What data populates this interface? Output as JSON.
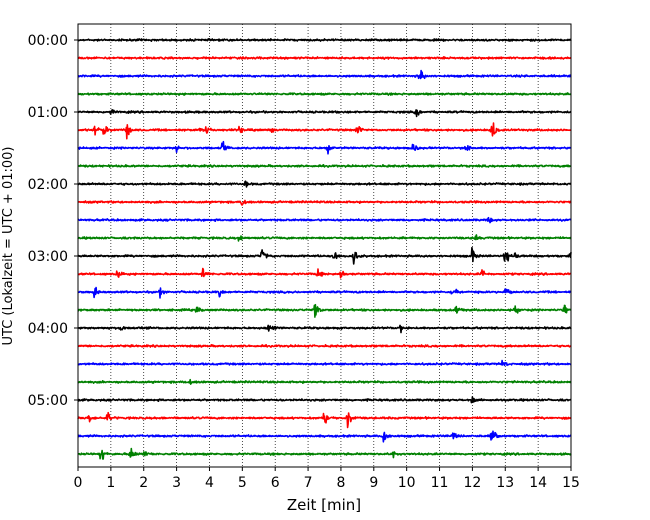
{
  "chart_data": {
    "type": "line",
    "title": "",
    "xlabel": "Zeit  [min]",
    "ylabel": "UTC (Lokalzeit = UTC + 01:00)",
    "xlim": [
      0,
      15
    ],
    "x_ticks": [
      "0",
      "1",
      "2",
      "3",
      "4",
      "5",
      "6",
      "7",
      "8",
      "9",
      "10",
      "11",
      "12",
      "13",
      "14",
      "15"
    ],
    "y_ticks": [
      "00:00",
      "01:00",
      "02:00",
      "03:00",
      "04:00",
      "05:00"
    ],
    "grid": "vertical dotted at each minute",
    "legend": "none",
    "row_colors": [
      "#000000",
      "#ff0000",
      "#0000ff",
      "#008000"
    ],
    "rows": [
      {
        "start": "00:00",
        "color": "#000000",
        "events": []
      },
      {
        "start": "00:15",
        "color": "#ff0000",
        "events": []
      },
      {
        "start": "00:30",
        "color": "#0000ff",
        "events": [
          {
            "t": 10.4,
            "amp": 10
          }
        ]
      },
      {
        "start": "00:45",
        "color": "#008000",
        "events": []
      },
      {
        "start": "01:00",
        "color": "#000000",
        "events": [
          {
            "t": 1.0,
            "amp": 4
          },
          {
            "t": 10.3,
            "amp": 5
          }
        ]
      },
      {
        "start": "01:15",
        "color": "#ff0000",
        "events": [
          {
            "t": 0.5,
            "amp": 8
          },
          {
            "t": 0.8,
            "amp": 7
          },
          {
            "t": 1.5,
            "amp": 9
          },
          {
            "t": 3.7,
            "amp": 7
          },
          {
            "t": 3.9,
            "amp": 8
          },
          {
            "t": 4.9,
            "amp": 7
          },
          {
            "t": 5.9,
            "amp": 7
          },
          {
            "t": 8.5,
            "amp": 7
          },
          {
            "t": 12.6,
            "amp": 12
          }
        ]
      },
      {
        "start": "01:30",
        "color": "#0000ff",
        "events": [
          {
            "t": 3.0,
            "amp": 6
          },
          {
            "t": 4.4,
            "amp": 7
          },
          {
            "t": 7.6,
            "amp": 7
          },
          {
            "t": 10.2,
            "amp": 9
          },
          {
            "t": 11.8,
            "amp": 7
          }
        ]
      },
      {
        "start": "01:45",
        "color": "#008000",
        "events": []
      },
      {
        "start": "02:00",
        "color": "#000000",
        "events": [
          {
            "t": 5.1,
            "amp": 6
          }
        ]
      },
      {
        "start": "02:15",
        "color": "#ff0000",
        "events": [
          {
            "t": 5.0,
            "amp": 7
          }
        ]
      },
      {
        "start": "02:30",
        "color": "#0000ff",
        "events": [
          {
            "t": 12.5,
            "amp": 5
          }
        ]
      },
      {
        "start": "02:45",
        "color": "#008000",
        "events": [
          {
            "t": 4.9,
            "amp": 5
          },
          {
            "t": 12.1,
            "amp": 4
          }
        ]
      },
      {
        "start": "03:00",
        "color": "#000000",
        "events": [
          {
            "t": 5.6,
            "amp": 9
          },
          {
            "t": 7.8,
            "amp": 8
          },
          {
            "t": 8.4,
            "amp": 12
          },
          {
            "t": 12.0,
            "amp": 9
          },
          {
            "t": 13.0,
            "amp": 10
          },
          {
            "t": 13.3,
            "amp": 6
          },
          {
            "t": 15.0,
            "amp": 6
          }
        ]
      },
      {
        "start": "03:15",
        "color": "#ff0000",
        "events": [
          {
            "t": 1.2,
            "amp": 6
          },
          {
            "t": 3.8,
            "amp": 7
          },
          {
            "t": 7.3,
            "amp": 6
          },
          {
            "t": 8.0,
            "amp": 8
          },
          {
            "t": 12.3,
            "amp": 6
          }
        ]
      },
      {
        "start": "03:30",
        "color": "#0000ff",
        "events": [
          {
            "t": 0.5,
            "amp": 7
          },
          {
            "t": 2.5,
            "amp": 6
          },
          {
            "t": 4.3,
            "amp": 6
          },
          {
            "t": 11.4,
            "amp": 7
          },
          {
            "t": 13.0,
            "amp": 5
          }
        ]
      },
      {
        "start": "03:45",
        "color": "#008000",
        "events": [
          {
            "t": 3.6,
            "amp": 6
          },
          {
            "t": 7.2,
            "amp": 12
          },
          {
            "t": 11.5,
            "amp": 6
          },
          {
            "t": 13.3,
            "amp": 6
          },
          {
            "t": 14.8,
            "amp": 7
          }
        ]
      },
      {
        "start": "04:00",
        "color": "#000000",
        "events": [
          {
            "t": 1.3,
            "amp": 4
          },
          {
            "t": 5.8,
            "amp": 9
          },
          {
            "t": 9.8,
            "amp": 5
          }
        ]
      },
      {
        "start": "04:15",
        "color": "#ff0000",
        "events": []
      },
      {
        "start": "04:30",
        "color": "#0000ff",
        "events": [
          {
            "t": 12.9,
            "amp": 6
          }
        ]
      },
      {
        "start": "04:45",
        "color": "#008000",
        "events": [
          {
            "t": 3.4,
            "amp": 5
          }
        ]
      },
      {
        "start": "05:00",
        "color": "#000000",
        "events": [
          {
            "t": 12.0,
            "amp": 5
          }
        ]
      },
      {
        "start": "05:15",
        "color": "#ff0000",
        "events": [
          {
            "t": 0.3,
            "amp": 7
          },
          {
            "t": 0.9,
            "amp": 7
          },
          {
            "t": 7.5,
            "amp": 10
          },
          {
            "t": 8.2,
            "amp": 11
          }
        ]
      },
      {
        "start": "05:30",
        "color": "#0000ff",
        "events": [
          {
            "t": 9.3,
            "amp": 8
          },
          {
            "t": 11.4,
            "amp": 5
          },
          {
            "t": 12.6,
            "amp": 11
          }
        ]
      },
      {
        "start": "05:45",
        "color": "#008000",
        "events": [
          {
            "t": 0.7,
            "amp": 10
          },
          {
            "t": 1.6,
            "amp": 9
          },
          {
            "t": 2.0,
            "amp": 5
          },
          {
            "t": 9.6,
            "amp": 5
          }
        ]
      }
    ]
  }
}
